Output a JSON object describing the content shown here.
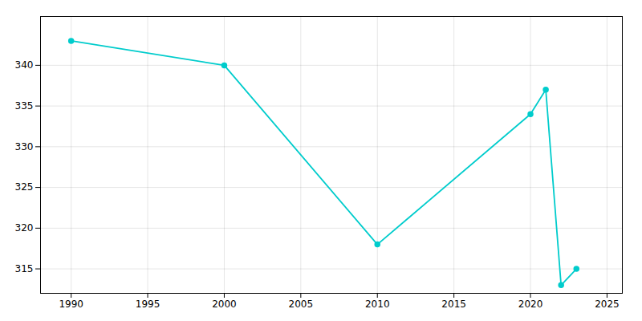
{
  "chart_data": {
    "type": "line",
    "x": [
      1990,
      2000,
      2010,
      2020,
      2021,
      2022,
      2023
    ],
    "values": [
      343,
      340,
      318,
      334,
      337,
      313,
      315
    ],
    "color": "#00CCCC",
    "marker": "circle",
    "xlim": [
      1988,
      2026
    ],
    "ylim": [
      312,
      346
    ],
    "xticks": [
      1990,
      1995,
      2000,
      2005,
      2010,
      2015,
      2020,
      2025
    ],
    "yticks": [
      315,
      320,
      325,
      330,
      335,
      340
    ],
    "grid": true
  }
}
